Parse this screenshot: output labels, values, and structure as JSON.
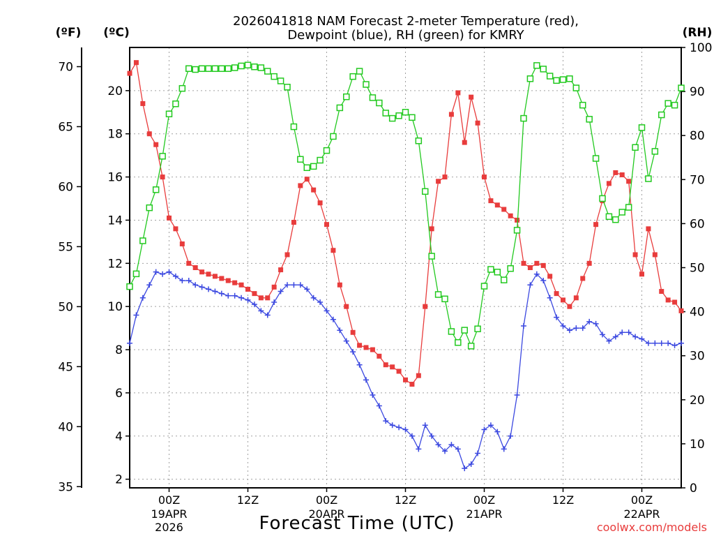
{
  "chart_data": {
    "type": "line",
    "title": "2026041818 NAM Forecast 2-meter Temperature (red),",
    "title_line2": "Dewpoint (blue), RH (green) for KMRY",
    "xlabel": "Forecast Time (UTC)",
    "credit": "coolwx.com/models",
    "units": {
      "fahrenheit": "(ºF)",
      "celsius": "(ºC)",
      "rh": "(RH)"
    },
    "axes": {
      "celsius": {
        "range": [
          1.6,
          22.0
        ],
        "ticks": [
          "2",
          "4",
          "6",
          "8",
          "10",
          "12",
          "14",
          "16",
          "18",
          "20"
        ]
      },
      "fahrenheit": {
        "range": [
          34.9,
          71.6
        ],
        "ticks": [
          "35",
          "40",
          "45",
          "50",
          "55",
          "60",
          "65",
          "70"
        ]
      },
      "rh": {
        "range": [
          0,
          100
        ],
        "ticks": [
          "0",
          "10",
          "20",
          "30",
          "40",
          "50",
          "60",
          "70",
          "80",
          "90",
          "100"
        ]
      },
      "time_hours": [
        18,
        102
      ],
      "grid": true
    },
    "x_ticks": [
      {
        "hour": 24,
        "label": "00Z",
        "date": "19APR",
        "year": "2026"
      },
      {
        "hour": 36,
        "label": "12Z"
      },
      {
        "hour": 48,
        "label": "00Z",
        "date": "20APR"
      },
      {
        "hour": 60,
        "label": "12Z"
      },
      {
        "hour": 72,
        "label": "00Z",
        "date": "21APR"
      },
      {
        "hour": 84,
        "label": "12Z"
      },
      {
        "hour": 96,
        "label": "00Z",
        "date": "22APR"
      }
    ],
    "series": [
      {
        "name": "Temperature",
        "axis": "celsius",
        "color": "#e83c3c",
        "marker": "filled-square",
        "x": [
          18,
          19,
          20,
          21,
          22,
          23,
          24,
          25,
          26,
          27,
          28,
          29,
          30,
          31,
          32,
          33,
          34,
          35,
          36,
          37,
          38,
          39,
          40,
          41,
          42,
          43,
          44,
          45,
          46,
          47,
          48,
          49,
          50,
          51,
          52,
          53,
          54,
          55,
          56,
          57,
          58,
          59,
          60,
          61,
          62,
          63,
          64,
          65,
          66,
          67,
          68,
          69,
          70,
          71,
          72,
          73,
          74,
          75,
          76,
          77,
          78,
          79,
          80,
          81,
          82,
          83,
          84,
          85,
          86,
          87,
          88,
          89,
          90,
          91,
          92,
          93,
          94,
          95,
          96,
          97,
          98,
          99,
          100,
          101,
          102
        ],
        "y": [
          20.8,
          21.3,
          19.4,
          18.0,
          17.5,
          16.0,
          14.1,
          13.6,
          12.9,
          12.0,
          11.8,
          11.6,
          11.5,
          11.4,
          11.3,
          11.2,
          11.1,
          11.0,
          10.8,
          10.6,
          10.4,
          10.4,
          10.9,
          11.7,
          12.4,
          13.9,
          15.6,
          15.9,
          15.4,
          14.8,
          13.8,
          12.6,
          11.0,
          10.0,
          8.8,
          8.2,
          8.1,
          8.0,
          7.7,
          7.3,
          7.2,
          7.0,
          6.6,
          6.4,
          6.8,
          10.0,
          13.6,
          15.8,
          16.0,
          18.9,
          19.9,
          17.6,
          19.7,
          18.5,
          16.0,
          14.9,
          14.7,
          14.5,
          14.2,
          14.0,
          12.0,
          11.8,
          12.0,
          11.9,
          11.4,
          10.6,
          10.3,
          10.0,
          10.4,
          11.3,
          12.0,
          13.8,
          14.9,
          15.7,
          16.2,
          16.1,
          15.8,
          12.4,
          11.5,
          13.6,
          12.4,
          10.7,
          10.3,
          10.2,
          9.8
        ]
      },
      {
        "name": "Dewpoint",
        "axis": "celsius",
        "color": "#3b48e0",
        "marker": "plus",
        "x": [
          18,
          19,
          20,
          21,
          22,
          23,
          24,
          25,
          26,
          27,
          28,
          29,
          30,
          31,
          32,
          33,
          34,
          35,
          36,
          37,
          38,
          39,
          40,
          41,
          42,
          43,
          44,
          45,
          46,
          47,
          48,
          49,
          50,
          51,
          52,
          53,
          54,
          55,
          56,
          57,
          58,
          59,
          60,
          61,
          62,
          63,
          64,
          65,
          66,
          67,
          68,
          69,
          70,
          71,
          72,
          73,
          74,
          75,
          76,
          77,
          78,
          79,
          80,
          81,
          82,
          83,
          84,
          85,
          86,
          87,
          88,
          89,
          90,
          91,
          92,
          93,
          94,
          95,
          96,
          97,
          98,
          99,
          100,
          101,
          102
        ],
        "y": [
          8.3,
          9.6,
          10.4,
          11.0,
          11.6,
          11.5,
          11.6,
          11.4,
          11.2,
          11.2,
          11.0,
          10.9,
          10.8,
          10.7,
          10.6,
          10.5,
          10.5,
          10.4,
          10.3,
          10.1,
          9.8,
          9.6,
          10.2,
          10.7,
          11.0,
          11.0,
          11.0,
          10.8,
          10.4,
          10.2,
          9.8,
          9.4,
          8.9,
          8.4,
          7.9,
          7.3,
          6.6,
          5.9,
          5.4,
          4.7,
          4.5,
          4.4,
          4.3,
          4.0,
          3.4,
          4.5,
          4.0,
          3.6,
          3.3,
          3.6,
          3.4,
          2.5,
          2.7,
          3.2,
          4.3,
          4.5,
          4.2,
          3.4,
          4.0,
          5.9,
          9.1,
          11.0,
          11.5,
          11.2,
          10.4,
          9.5,
          9.1,
          8.9,
          9.0,
          9.0,
          9.3,
          9.2,
          8.7,
          8.4,
          8.6,
          8.8,
          8.8,
          8.6,
          8.5,
          8.3,
          8.3,
          8.3,
          8.3,
          8.2,
          8.3
        ]
      },
      {
        "name": "RH",
        "axis": "rh",
        "color": "#22c91f",
        "marker": "open-square",
        "x": [
          18,
          19,
          20,
          21,
          22,
          23,
          24,
          25,
          26,
          27,
          28,
          29,
          30,
          31,
          32,
          33,
          34,
          35,
          36,
          37,
          38,
          39,
          40,
          41,
          42,
          43,
          44,
          45,
          46,
          47,
          48,
          49,
          50,
          51,
          52,
          53,
          54,
          55,
          56,
          57,
          58,
          59,
          60,
          61,
          62,
          63,
          64,
          65,
          66,
          67,
          68,
          69,
          70,
          71,
          72,
          73,
          74,
          75,
          76,
          77,
          78,
          79,
          80,
          81,
          82,
          83,
          84,
          85,
          86,
          87,
          88,
          89,
          90,
          91,
          92,
          93,
          94,
          95,
          96,
          97,
          98,
          99,
          100,
          101,
          102
        ],
        "y": [
          45.7,
          48.6,
          56.1,
          63.6,
          67.7,
          75.3,
          84.9,
          87.2,
          90.7,
          95.2,
          95.0,
          95.2,
          95.2,
          95.2,
          95.2,
          95.2,
          95.4,
          95.8,
          96.0,
          95.6,
          95.4,
          94.6,
          93.4,
          92.4,
          91.0,
          82.0,
          74.6,
          72.7,
          73.0,
          74.4,
          76.6,
          79.8,
          86.3,
          88.8,
          93.4,
          94.6,
          91.6,
          88.6,
          87.4,
          85.1,
          83.9,
          84.5,
          85.3,
          84.1,
          78.8,
          67.3,
          52.6,
          43.9,
          42.9,
          35.5,
          33.0,
          35.8,
          32.2,
          36.1,
          45.8,
          49.6,
          49.0,
          47.2,
          49.8,
          58.5,
          83.9,
          92.9,
          95.9,
          95.1,
          93.5,
          92.5,
          92.7,
          92.9,
          90.8,
          86.9,
          83.7,
          74.8,
          65.7,
          61.6,
          60.9,
          62.6,
          63.7,
          77.3,
          81.8,
          70.2,
          76.4,
          84.7,
          87.3,
          86.9,
          90.8
        ]
      }
    ]
  }
}
